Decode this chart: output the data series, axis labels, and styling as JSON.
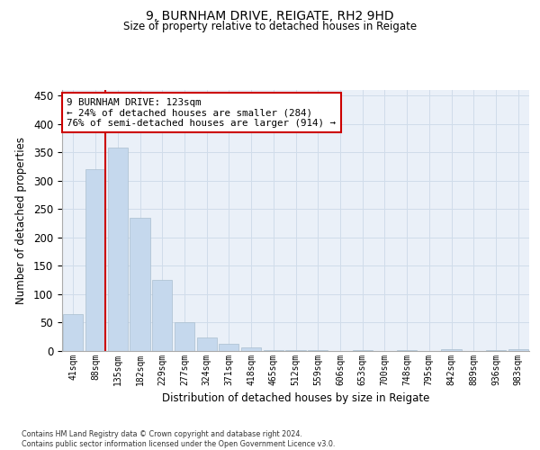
{
  "title1": "9, BURNHAM DRIVE, REIGATE, RH2 9HD",
  "title2": "Size of property relative to detached houses in Reigate",
  "xlabel": "Distribution of detached houses by size in Reigate",
  "ylabel": "Number of detached properties",
  "categories": [
    "41sqm",
    "88sqm",
    "135sqm",
    "182sqm",
    "229sqm",
    "277sqm",
    "324sqm",
    "371sqm",
    "418sqm",
    "465sqm",
    "512sqm",
    "559sqm",
    "606sqm",
    "653sqm",
    "700sqm",
    "748sqm",
    "795sqm",
    "842sqm",
    "889sqm",
    "936sqm",
    "983sqm"
  ],
  "values": [
    65,
    320,
    358,
    235,
    125,
    50,
    24,
    13,
    7,
    2,
    1,
    1,
    0,
    1,
    0,
    1,
    0,
    3,
    0,
    1,
    3
  ],
  "bar_color": "#c5d8ed",
  "bar_edge_color": "#aabfcf",
  "grid_color": "#d0dcea",
  "bg_color": "#eaf0f8",
  "vline_color": "#cc0000",
  "annotation_text": "9 BURNHAM DRIVE: 123sqm\n← 24% of detached houses are smaller (284)\n76% of semi-detached houses are larger (914) →",
  "annotation_box_color": "#ffffff",
  "annotation_box_edge": "#cc0000",
  "footnote": "Contains HM Land Registry data © Crown copyright and database right 2024.\nContains public sector information licensed under the Open Government Licence v3.0.",
  "ylim": [
    0,
    460
  ],
  "yticks": [
    0,
    50,
    100,
    150,
    200,
    250,
    300,
    350,
    400,
    450
  ]
}
